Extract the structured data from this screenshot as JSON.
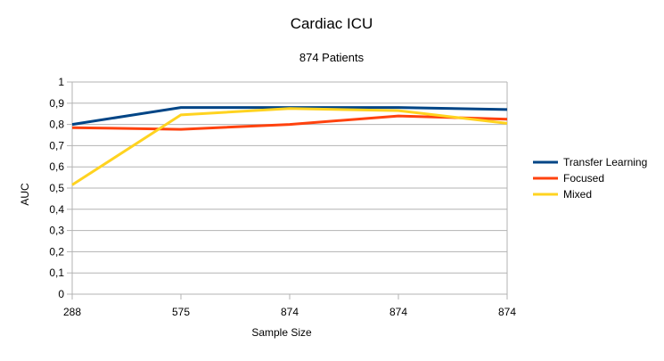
{
  "chart_data": {
    "type": "line",
    "title": "Cardiac ICU",
    "subtitle": "874 Patients",
    "xlabel": "Sample Size",
    "ylabel": "AUC",
    "categories": [
      "288",
      "575",
      "874",
      "874",
      "874"
    ],
    "ylim": [
      0,
      1
    ],
    "yticks": [
      "0",
      "0,1",
      "0,2",
      "0,3",
      "0,4",
      "0,5",
      "0,6",
      "0,7",
      "0,8",
      "0,9",
      "1"
    ],
    "grid": true,
    "legend_position": "right",
    "series": [
      {
        "name": "Transfer Learning",
        "color": "#004586",
        "values": [
          0.8,
          0.88,
          0.88,
          0.88,
          0.87
        ]
      },
      {
        "name": "Focused",
        "color": "#ff420e",
        "values": [
          0.785,
          0.777,
          0.8,
          0.84,
          0.825
        ]
      },
      {
        "name": "Mixed",
        "color": "#ffd320",
        "values": [
          0.515,
          0.845,
          0.875,
          0.865,
          0.805
        ]
      }
    ]
  }
}
